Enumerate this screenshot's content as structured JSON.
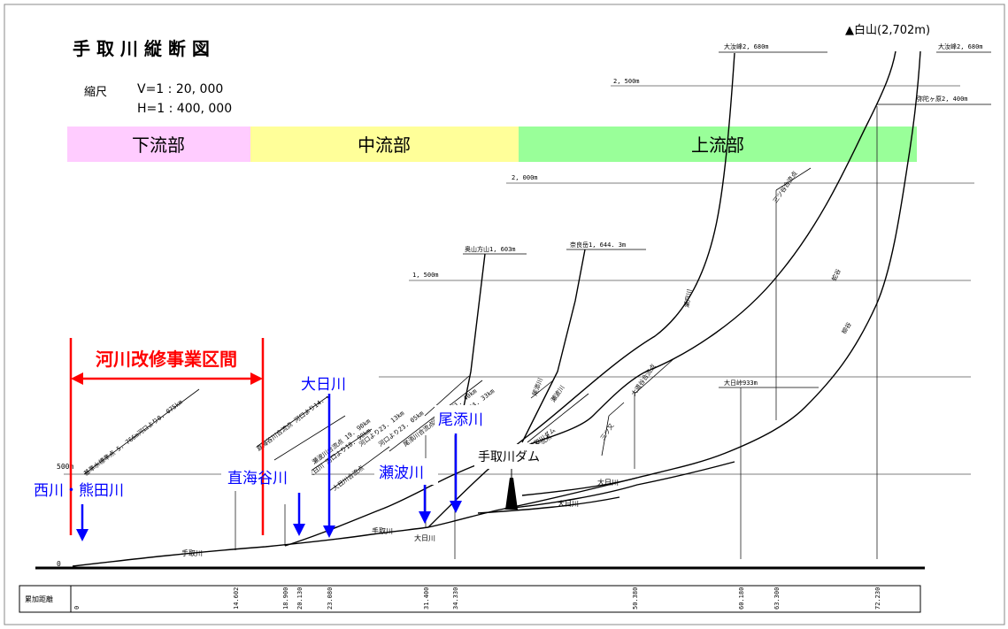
{
  "title": "手 取 川 縦 断 図",
  "scale": {
    "label": "縮尺",
    "v": "V=1 : 20, 000",
    "h": "H=1 : 400, 000"
  },
  "sections": [
    {
      "label": "下流部",
      "color": "#ffccff"
    },
    {
      "label": "中流部",
      "color": "#ffff99"
    },
    {
      "label": "上流部",
      "color": "#99ff99"
    }
  ],
  "elevation_labels": {
    "e0": "0",
    "e500": "500m",
    "e1500": "1, 500m",
    "e2000": "2, 000m",
    "e2500": "2, 500m"
  },
  "project_section": {
    "label": "河川改修事業区間",
    "color": "#ff0000"
  },
  "tributaries": [
    {
      "label": "西川・熊田川"
    },
    {
      "label": "直海谷川"
    },
    {
      "label": "大日川"
    },
    {
      "label": "瀬波川"
    },
    {
      "label": "尾添川"
    }
  ],
  "dam_label": "手取川ダム",
  "peaks": {
    "hakusan": "▲白山(2,702m)",
    "ohnanji": "大汝峰2, 680m",
    "ohnanji_right": "大汝峰2, 680m",
    "mida": "弥陀ヶ原2, 400m",
    "okusan": "奥山方山1, 603m",
    "naragatake": "奈良岳1, 644. 3m",
    "dainichi": "大日峠933m"
  },
  "diagonal_labels": [
    {
      "text": "基準水標準点 5. 766m河口より0. 075km"
    },
    {
      "text": "直海谷川合流点 河口より14. 60km"
    },
    {
      "text": "大日川 河口より18. 90km"
    },
    {
      "text": "大日川合流点"
    },
    {
      "text": "河口より23. 13km"
    },
    {
      "text": "瀬波川合流点 19. 90km"
    },
    {
      "text": "河口より23. 05km"
    },
    {
      "text": "尾添川合流点"
    },
    {
      "text": "河口より31. 40km"
    },
    {
      "text": "河口より34. 33km"
    },
    {
      "text": "尾添川"
    },
    {
      "text": "瀬波川"
    },
    {
      "text": "手取川ダム"
    },
    {
      "text": "新保谷合流点"
    },
    {
      "text": "三ツ又"
    },
    {
      "text": "大道谷合流点"
    },
    {
      "text": "三ツ谷合流点"
    },
    {
      "text": "蛇谷"
    },
    {
      "text": "柳谷"
    },
    {
      "text": "蓮谷"
    },
    {
      "text": "瀬戸川"
    }
  ],
  "river_labels": {
    "main_low": "手取川",
    "main_mid": "手取川",
    "dainichi": "大日川",
    "dainichi2": "大日川",
    "dainichi3": "大日川"
  },
  "distance_row": {
    "label": "累加距離",
    "ticks": [
      "0",
      "14.602",
      "18.900",
      "20.130",
      "23.080",
      "31.400",
      "34.330",
      "50.380",
      "60.180",
      "63.300",
      "72.230"
    ]
  }
}
